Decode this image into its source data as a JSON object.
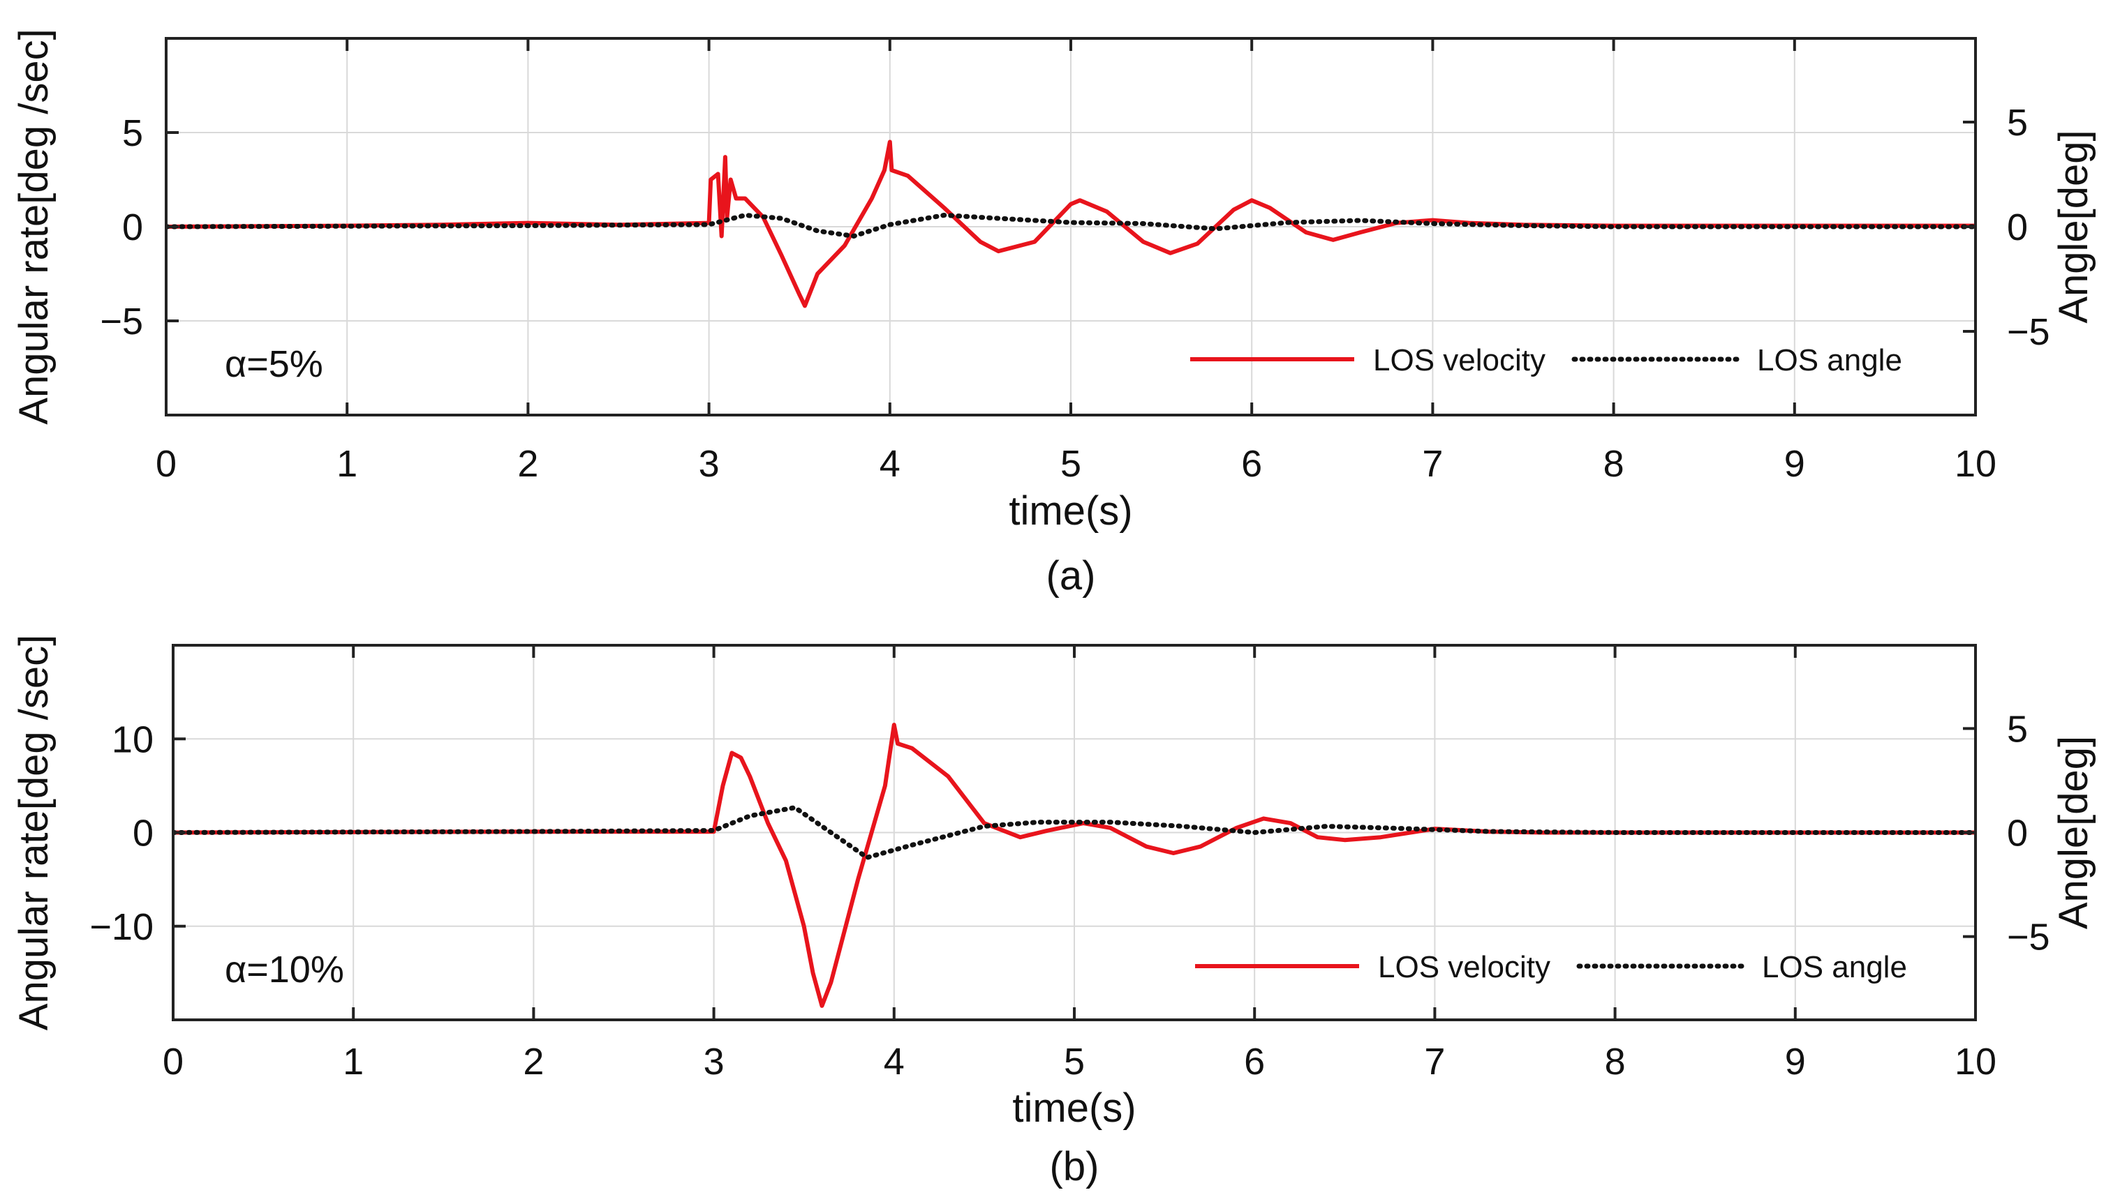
{
  "chart_data": [
    {
      "id": "a",
      "type": "line",
      "caption": "(a)",
      "annotation": "α=5%",
      "xlabel": "time(s)",
      "ylabel": "Angular rate[deg /sec]",
      "ylabel_right": "Angle[deg]",
      "xlim": [
        0,
        10
      ],
      "ylim": [
        -10,
        10
      ],
      "ylim_right": [
        -9,
        9
      ],
      "xticks": [
        0,
        1,
        2,
        3,
        4,
        5,
        6,
        7,
        8,
        9,
        10
      ],
      "xtick_labels": [
        "0",
        "1",
        "2",
        "3",
        "4",
        "5",
        "6",
        "7",
        "8",
        "9",
        "10"
      ],
      "yticks": [
        -5,
        0,
        5
      ],
      "ytick_labels": [
        "−5",
        "0",
        "5"
      ],
      "yticks_right": [
        -5,
        0,
        5
      ],
      "ytick_labels_right": [
        "−5",
        "0",
        "5"
      ],
      "grid": true,
      "legend_position": "bottom-right",
      "series": [
        {
          "name": "LOS velocity",
          "axis": "left",
          "color": "#e8141c",
          "style": "solid",
          "x": [
            0,
            1,
            1.5,
            2,
            2.5,
            3.0,
            3.01,
            3.05,
            3.07,
            3.09,
            3.1,
            3.12,
            3.15,
            3.2,
            3.3,
            3.4,
            3.5,
            3.53,
            3.6,
            3.75,
            3.9,
            3.97,
            4.0,
            4.01,
            4.1,
            4.3,
            4.5,
            4.6,
            4.8,
            5.0,
            5.05,
            5.2,
            5.4,
            5.55,
            5.7,
            5.9,
            6.0,
            6.1,
            6.3,
            6.45,
            6.6,
            6.8,
            7.0,
            7.2,
            7.5,
            8,
            9,
            10
          ],
          "y": [
            0,
            0.05,
            0.1,
            0.2,
            0.1,
            0.2,
            2.5,
            2.8,
            -0.5,
            3.7,
            0.5,
            2.5,
            1.5,
            1.5,
            0.5,
            -1.5,
            -3.6,
            -4.2,
            -2.5,
            -1.0,
            1.5,
            3.0,
            4.5,
            3.0,
            2.7,
            1.0,
            -0.8,
            -1.3,
            -0.8,
            1.2,
            1.4,
            0.8,
            -0.8,
            -1.4,
            -0.9,
            0.9,
            1.4,
            1.0,
            -0.3,
            -0.7,
            -0.3,
            0.2,
            0.35,
            0.2,
            0.1,
            0.05,
            0.05,
            0.05
          ]
        },
        {
          "name": "LOS angle",
          "axis": "right",
          "color": "#111111",
          "style": "dotted",
          "x": [
            0,
            2,
            3.0,
            3.2,
            3.4,
            3.6,
            3.8,
            4.0,
            4.3,
            4.6,
            5.0,
            5.4,
            5.8,
            6.2,
            6.6,
            7.0,
            7.5,
            8,
            10
          ],
          "y": [
            0,
            0.05,
            0.1,
            0.55,
            0.4,
            -0.2,
            -0.45,
            0.1,
            0.55,
            0.4,
            0.2,
            0.15,
            -0.1,
            0.2,
            0.3,
            0.15,
            0.05,
            0,
            0
          ]
        }
      ]
    },
    {
      "id": "b",
      "type": "line",
      "caption": "(b)",
      "annotation": "α=10%",
      "xlabel": "time(s)",
      "ylabel": "Angular rate[deg /sec]",
      "ylabel_right": "Angle[deg]",
      "xlim": [
        0,
        10
      ],
      "ylim": [
        -20,
        20
      ],
      "ylim_right": [
        -9,
        9
      ],
      "xticks": [
        0,
        1,
        2,
        3,
        4,
        5,
        6,
        7,
        8,
        9,
        10
      ],
      "xtick_labels": [
        "0",
        "1",
        "2",
        "3",
        "4",
        "5",
        "6",
        "7",
        "8",
        "9",
        "10"
      ],
      "yticks": [
        -10,
        0,
        10
      ],
      "ytick_labels": [
        "−10",
        "0",
        "10"
      ],
      "yticks_right": [
        -5,
        0,
        5
      ],
      "ytick_labels_right": [
        "−5",
        "0",
        "5"
      ],
      "grid": true,
      "legend_position": "bottom-right",
      "series": [
        {
          "name": "LOS velocity",
          "axis": "left",
          "color": "#e8141c",
          "style": "solid",
          "x": [
            0,
            2,
            2.5,
            3.0,
            3.05,
            3.1,
            3.15,
            3.2,
            3.3,
            3.4,
            3.5,
            3.55,
            3.6,
            3.65,
            3.8,
            3.95,
            4.0,
            4.02,
            4.1,
            4.3,
            4.5,
            4.7,
            4.85,
            5.05,
            5.2,
            5.4,
            5.55,
            5.7,
            5.9,
            6.05,
            6.2,
            6.35,
            6.5,
            6.7,
            7.0,
            7.3,
            7.6,
            8,
            9,
            10
          ],
          "y": [
            0,
            0.1,
            0.1,
            0.1,
            5.0,
            8.5,
            8.0,
            6.0,
            1.0,
            -3.0,
            -10.0,
            -15.0,
            -18.5,
            -16.0,
            -5.0,
            5.0,
            11.5,
            9.5,
            9.0,
            6.0,
            1.0,
            -0.5,
            0.2,
            1.0,
            0.5,
            -1.5,
            -2.2,
            -1.5,
            0.5,
            1.5,
            1.0,
            -0.5,
            -0.8,
            -0.5,
            0.4,
            0.1,
            0,
            0,
            0,
            0
          ]
        },
        {
          "name": "LOS angle",
          "axis": "right",
          "color": "#111111",
          "style": "dotted",
          "x": [
            0,
            2,
            3.0,
            3.2,
            3.45,
            3.6,
            3.85,
            4.1,
            4.5,
            4.8,
            5.2,
            5.6,
            6.0,
            6.4,
            6.8,
            7.3,
            8,
            10
          ],
          "y": [
            0,
            0.05,
            0.1,
            0.8,
            1.2,
            0.3,
            -1.2,
            -0.6,
            0.3,
            0.5,
            0.5,
            0.3,
            0.0,
            0.3,
            0.2,
            0.05,
            0,
            0
          ]
        }
      ]
    }
  ]
}
